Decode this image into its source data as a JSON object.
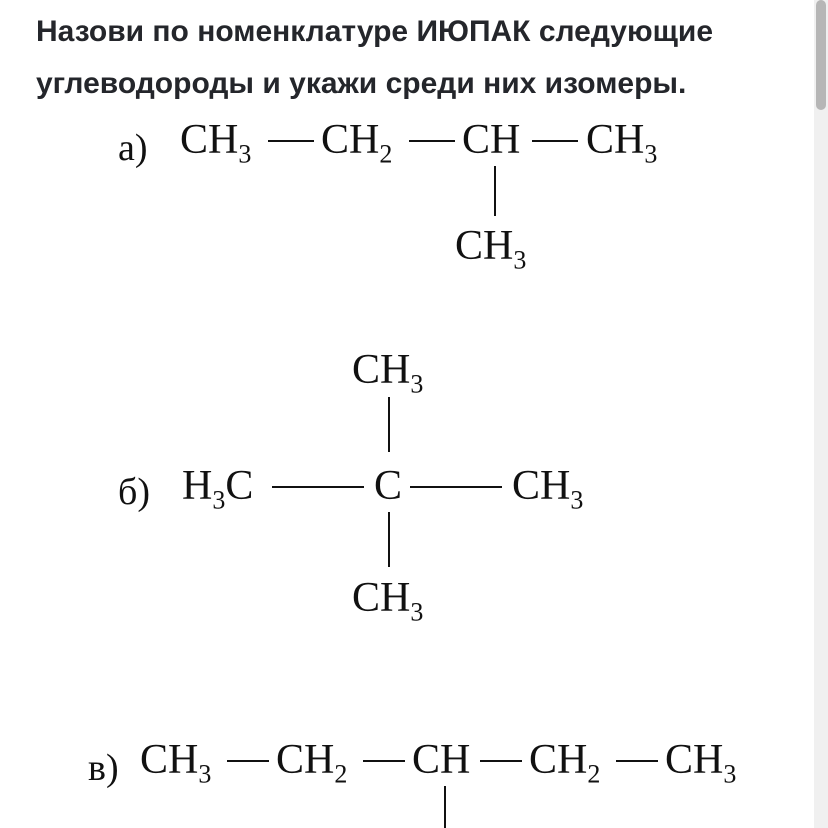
{
  "question": "Назови по номенклатуре ИЮПАК следующие углеводороды и укажи среди них изомеры.",
  "labels": {
    "a": "а)",
    "b": "б)",
    "c": "в)"
  },
  "g": {
    "CH3": "CH<sub>3</sub>",
    "CH2": "CH<sub>2</sub>",
    "CH": "CH",
    "H3C": "H<sub>3</sub>C",
    "C": "C"
  },
  "colors": {
    "bg": "#ffffff",
    "text": "#24262b",
    "formula": "#111111",
    "scroll_track": "#f0f0f0",
    "scroll_thumb": "#b6b6b6"
  }
}
